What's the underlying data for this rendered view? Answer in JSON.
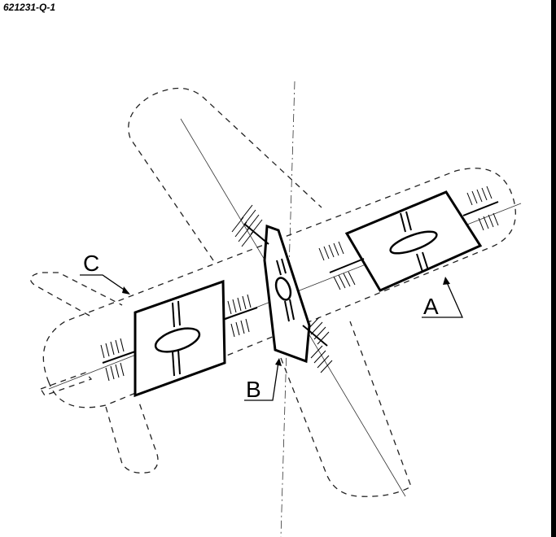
{
  "figure": {
    "id_label": "621231-Q-1",
    "labels": {
      "a": "A",
      "b": "B",
      "c": "C"
    }
  }
}
